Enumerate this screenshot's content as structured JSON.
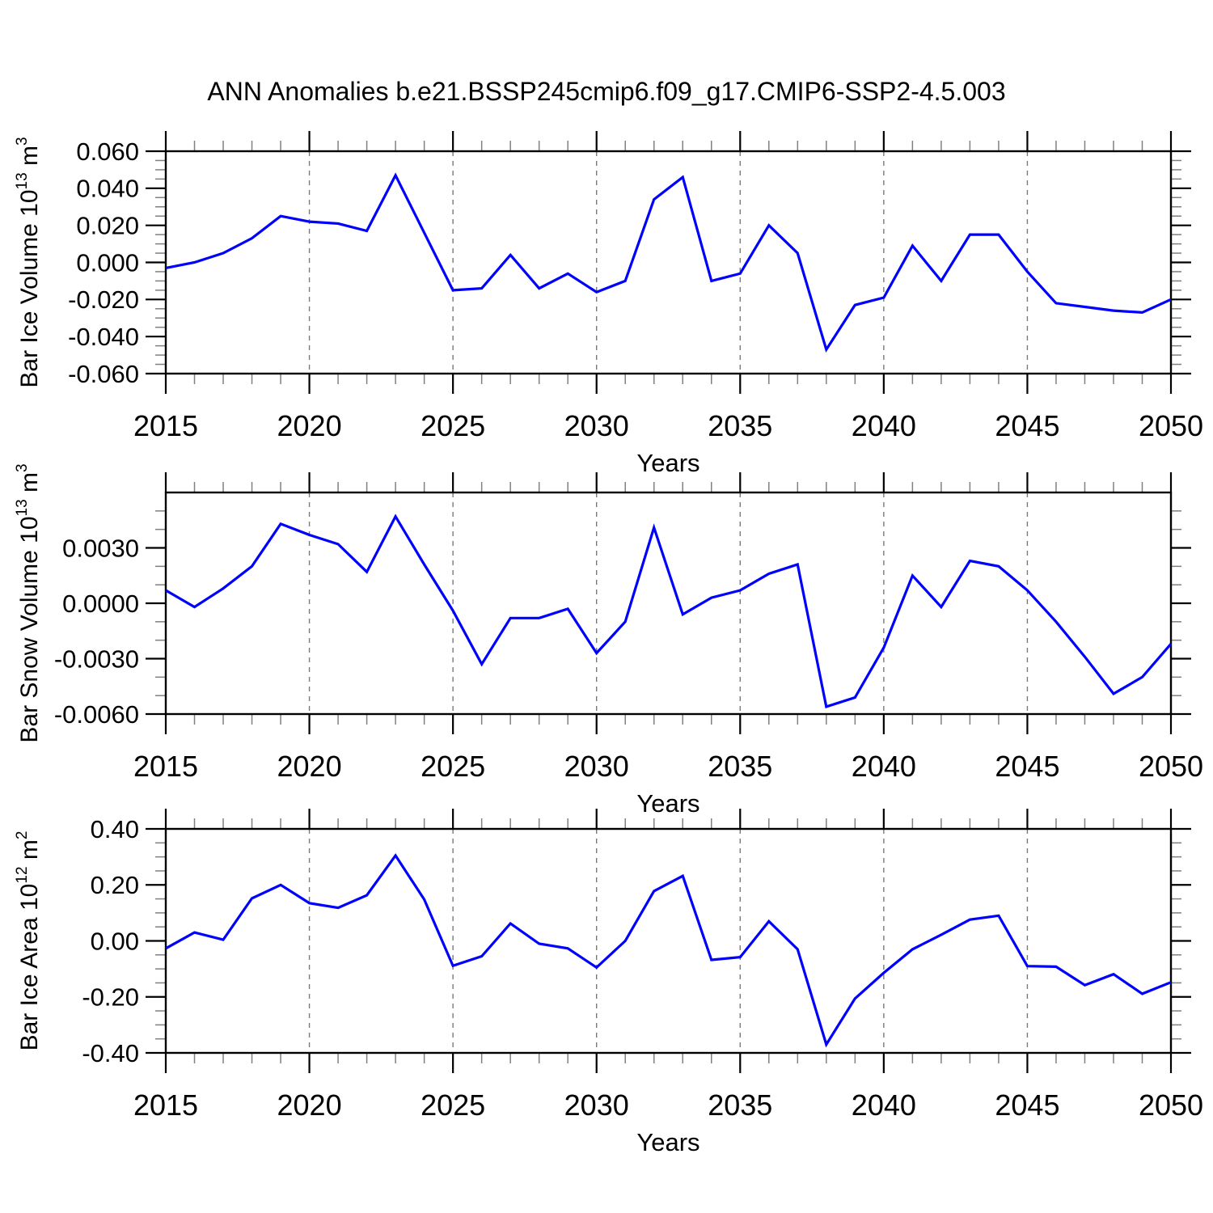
{
  "header": {
    "title": "ANN Anomalies b.e21.BSSP245cmip6.f09_g17.CMIP6-SSP2-4.5.003"
  },
  "chart_data": {
    "type": "line",
    "title": "ANN Anomalies b.e21.BSSP245cmip6.f09_g17.CMIP6-SSP2-4.5.003",
    "xlabel": "Years",
    "x_range": [
      2015,
      2050
    ],
    "years": [
      2015,
      2016,
      2017,
      2018,
      2019,
      2020,
      2021,
      2022,
      2023,
      2024,
      2025,
      2026,
      2027,
      2028,
      2029,
      2030,
      2031,
      2032,
      2033,
      2034,
      2035,
      2036,
      2037,
      2038,
      2039,
      2040,
      2041,
      2042,
      2043,
      2044,
      2045,
      2046,
      2047,
      2048,
      2049,
      2050
    ],
    "xtick_major": [
      2015,
      2020,
      2025,
      2030,
      2035,
      2040,
      2045,
      2050
    ],
    "xtick_labels": [
      "2015",
      "2020",
      "2025",
      "2030",
      "2035",
      "2040",
      "2045",
      "2050"
    ],
    "grid_years": [
      2020,
      2025,
      2030,
      2035,
      2040,
      2045
    ],
    "grid_on": true,
    "legend": "none",
    "line_color": "#0000ff",
    "grid_color": "#7a7a7a",
    "axis_color": "#000000",
    "minor_tick_color": "#808080",
    "panels": [
      {
        "name": "bar-ice-volume",
        "ylabel_text": "Bar Ice Volume 10^13 m^3",
        "ylabel_segments": [
          {
            "t": "Bar Ice Volume 10"
          },
          {
            "t": "13",
            "sup": true
          },
          {
            "t": " m"
          },
          {
            "t": "3",
            "sup": true
          }
        ],
        "ylim": [
          -0.06,
          0.06
        ],
        "ymajor": [
          0.06,
          0.04,
          0.02,
          0.0,
          -0.02,
          -0.04,
          -0.06
        ],
        "yminor_step": 0.005,
        "ytick_labels": [
          {
            "v": 0.06,
            "t": "0.060"
          },
          {
            "v": 0.04,
            "t": "0.040"
          },
          {
            "v": 0.02,
            "t": "0.020"
          },
          {
            "v": 0.0,
            "t": "0.000"
          },
          {
            "v": -0.02,
            "t": "-0.020"
          },
          {
            "v": -0.04,
            "t": "-0.040"
          },
          {
            "v": -0.06,
            "t": "-0.060"
          }
        ],
        "values": [
          -0.003,
          0.0,
          0.005,
          0.013,
          0.025,
          0.022,
          0.021,
          0.017,
          0.047,
          0.016,
          -0.015,
          -0.014,
          0.004,
          -0.014,
          -0.006,
          -0.016,
          -0.01,
          0.034,
          0.046,
          -0.01,
          -0.006,
          0.02,
          0.005,
          -0.047,
          -0.023,
          -0.019,
          0.009,
          -0.01,
          0.015,
          0.015,
          -0.005,
          -0.022,
          -0.024,
          -0.026,
          -0.027,
          -0.02
        ]
      },
      {
        "name": "bar-snow-volume",
        "ylabel_text": "Bar Snow Volume 10^13 m^3",
        "ylabel_segments": [
          {
            "t": "Bar Snow Volume 10"
          },
          {
            "t": "13",
            "sup": true
          },
          {
            "t": " m"
          },
          {
            "t": "3",
            "sup": true
          }
        ],
        "ylim": [
          -0.006,
          0.006
        ],
        "ymajor": [
          0.003,
          0.0,
          -0.003,
          -0.006
        ],
        "yminor_step": 0.001,
        "ytick_labels": [
          {
            "v": 0.003,
            "t": "0.0030"
          },
          {
            "v": 0.0,
            "t": "0.0000"
          },
          {
            "v": -0.003,
            "t": "-0.0030"
          },
          {
            "v": -0.006,
            "t": "-0.0060"
          }
        ],
        "values": [
          0.0007,
          -0.0002,
          0.0008,
          0.002,
          0.0043,
          0.0037,
          0.0032,
          0.0017,
          0.0047,
          0.0021,
          -0.0004,
          -0.0033,
          -0.0008,
          -0.0008,
          -0.0003,
          -0.0027,
          -0.001,
          0.0041,
          -0.0006,
          0.0003,
          0.0007,
          0.0016,
          0.0021,
          -0.0056,
          -0.0051,
          -0.0024,
          0.0015,
          -0.0002,
          0.0023,
          0.002,
          0.0007,
          -0.001,
          -0.0029,
          -0.0049,
          -0.004,
          -0.0022
        ]
      },
      {
        "name": "bar-ice-area",
        "ylabel_text": "Bar Ice Area 10^12 m^2",
        "ylabel_segments": [
          {
            "t": "Bar Ice Area 10"
          },
          {
            "t": "12",
            "sup": true
          },
          {
            "t": " m"
          },
          {
            "t": "2",
            "sup": true
          }
        ],
        "ylim": [
          -0.4,
          0.4
        ],
        "ymajor": [
          0.4,
          0.2,
          0.0,
          -0.2,
          -0.4
        ],
        "yminor_step": 0.05,
        "ytick_labels": [
          {
            "v": 0.4,
            "t": "0.40"
          },
          {
            "v": 0.2,
            "t": "0.20"
          },
          {
            "v": 0.0,
            "t": "0.00"
          },
          {
            "v": -0.2,
            "t": "-0.20"
          },
          {
            "v": -0.4,
            "t": "-0.40"
          }
        ],
        "values": [
          -0.027,
          0.03,
          0.004,
          0.152,
          0.2,
          0.135,
          0.118,
          0.163,
          0.305,
          0.148,
          -0.089,
          -0.055,
          0.062,
          -0.01,
          -0.027,
          -0.095,
          0.0,
          0.178,
          0.232,
          -0.068,
          -0.058,
          0.07,
          -0.03,
          -0.37,
          -0.206,
          -0.114,
          -0.03,
          0.022,
          0.076,
          0.09,
          -0.09,
          -0.092,
          -0.158,
          -0.119,
          -0.189,
          -0.148
        ]
      }
    ]
  }
}
